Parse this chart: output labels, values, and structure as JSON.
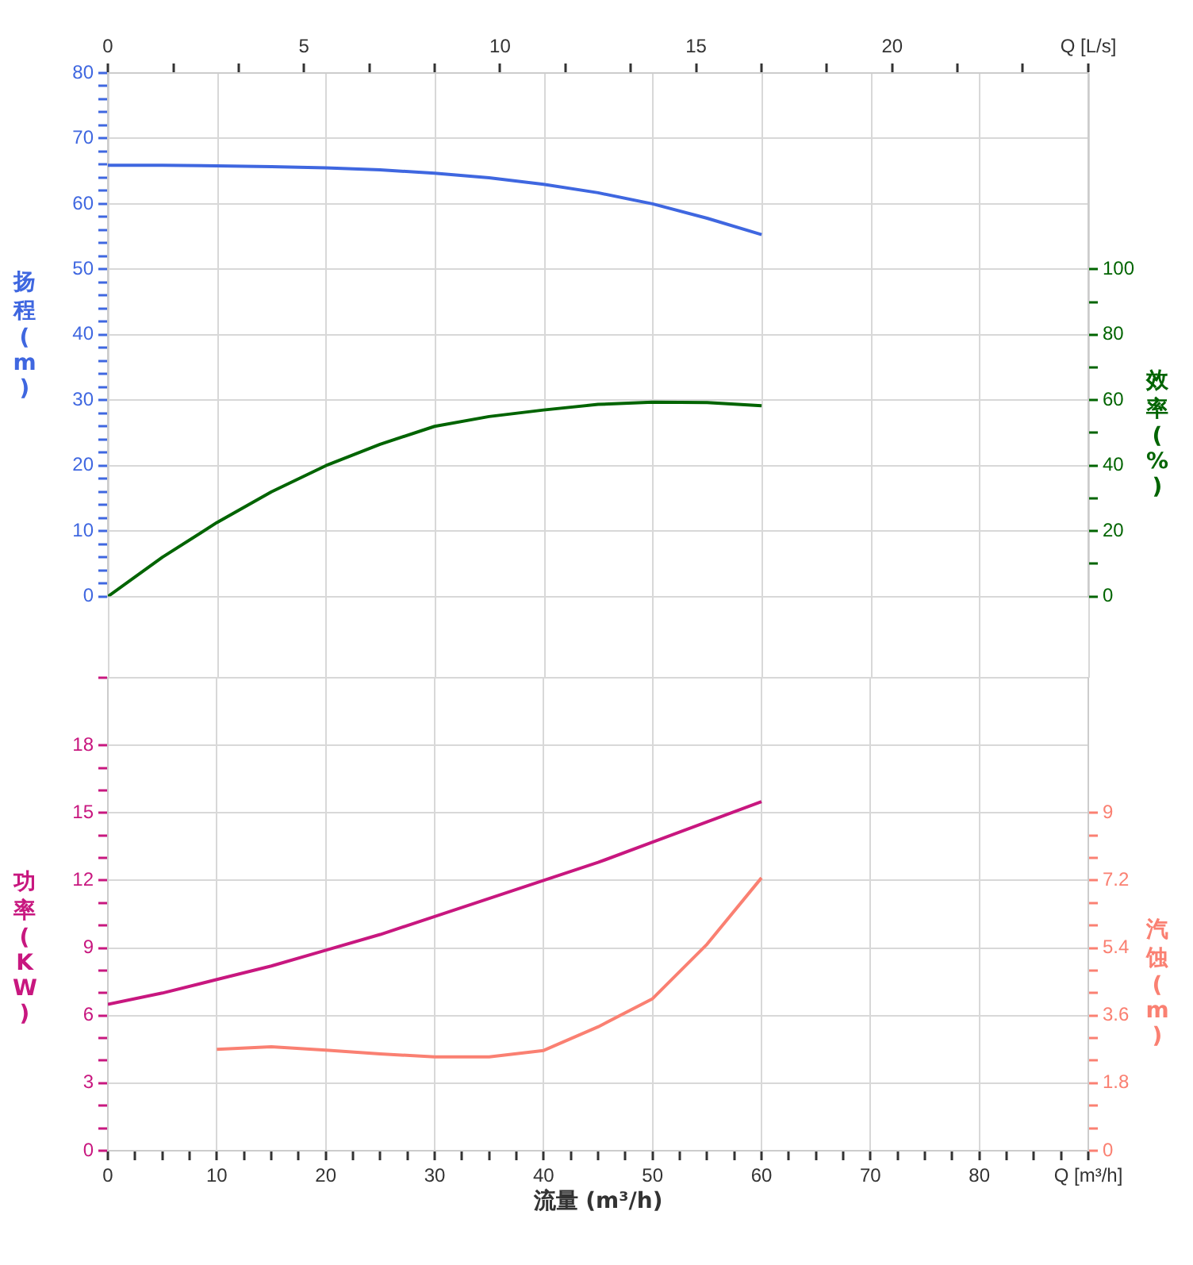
{
  "chart_data": [
    {
      "type": "line",
      "ylabel": "扬程(m)",
      "y2label": "效率(%)",
      "grid": "y",
      "x": [
        0,
        1.39,
        2.78,
        4.17,
        5.56,
        6.94,
        8.33,
        9.72,
        11.11,
        12.5,
        13.89,
        15.28,
        16.67
      ],
      "xlim": [
        0,
        25
      ],
      "xticks": [
        0,
        {
          "value": 1.67,
          "label": null
        },
        {
          "value": 3.33,
          "label": null
        },
        5,
        {
          "value": 6.67,
          "label": null
        },
        {
          "value": 8.33,
          "label": null
        },
        10,
        {
          "value": 11.67,
          "label": null
        },
        {
          "value": 13.33,
          "label": null
        },
        15,
        {
          "value": 16.67,
          "label": null
        },
        {
          "value": 18.33,
          "label": null
        },
        20,
        {
          "value": 21.67,
          "label": null
        },
        {
          "value": 23.33,
          "label": null
        },
        {
          "value": 25,
          "label": "Q [L/s]"
        }
      ],
      "ylim": [
        0,
        80
      ],
      "yticks": [
        0,
        {
          "value": 2,
          "label": null
        },
        {
          "value": 4,
          "label": null
        },
        {
          "value": 6,
          "label": null
        },
        {
          "value": 8,
          "label": null
        },
        10,
        {
          "value": 12,
          "label": null
        },
        {
          "value": 14,
          "label": null
        },
        {
          "value": 16,
          "label": null
        },
        {
          "value": 18,
          "label": null
        },
        20,
        {
          "value": 22,
          "label": null
        },
        {
          "value": 24,
          "label": null
        },
        {
          "value": 26,
          "label": null
        },
        {
          "value": 28,
          "label": null
        },
        30,
        {
          "value": 32,
          "label": null
        },
        {
          "value": 34,
          "label": null
        },
        {
          "value": 36,
          "label": null
        },
        {
          "value": 38,
          "label": null
        },
        40,
        {
          "value": 42,
          "label": null
        },
        {
          "value": 44,
          "label": null
        },
        {
          "value": 46,
          "label": null
        },
        {
          "value": 48,
          "label": null
        },
        50,
        {
          "value": 52,
          "label": null
        },
        {
          "value": 54,
          "label": null
        },
        {
          "value": 56,
          "label": null
        },
        {
          "value": 58,
          "label": null
        },
        60,
        {
          "value": 62,
          "label": null
        },
        {
          "value": 64,
          "label": null
        },
        {
          "value": 66,
          "label": null
        },
        {
          "value": 68,
          "label": null
        },
        70,
        {
          "value": 72,
          "label": null
        },
        {
          "value": 74,
          "label": null
        },
        {
          "value": 76,
          "label": null
        },
        {
          "value": 78,
          "label": null
        },
        80
      ],
      "y2lim": [
        0,
        160
      ],
      "y2ticks": [
        0,
        {
          "value": 10,
          "label": null
        },
        20,
        {
          "value": 30,
          "label": null
        },
        40,
        {
          "value": 50,
          "label": null
        },
        60,
        {
          "value": 70,
          "label": null
        },
        80,
        {
          "value": 90,
          "label": null
        },
        100
      ],
      "series": [
        {
          "color": "#3f67e0",
          "values": [
            65.9,
            65.9,
            65.8,
            65.7,
            65.5,
            65.2,
            64.7,
            64.0,
            63.0,
            61.7,
            60.0,
            57.8,
            55.3
          ]
        },
        {
          "color": "#006400",
          "axis": "y2",
          "values": [
            0,
            12,
            22.6,
            32,
            40,
            46.5,
            52,
            55,
            57,
            58.7,
            59.4,
            59.3,
            58.3
          ]
        }
      ]
    },
    {
      "type": "line",
      "ylabel": "功率(KW)",
      "y2label": "汽蚀(m)",
      "xlabel": "流量 (m³/h)",
      "grid": true,
      "x": [
        0,
        5,
        10,
        15,
        20,
        25,
        30,
        35,
        40,
        45,
        50,
        55,
        60
      ],
      "xlim": [
        0,
        90
      ],
      "xticks": [
        0,
        {
          "value": 2.5,
          "label": null
        },
        {
          "value": 5,
          "label": null
        },
        {
          "value": 7.5,
          "label": null
        },
        10,
        {
          "value": 12.5,
          "label": null
        },
        {
          "value": 15,
          "label": null
        },
        {
          "value": 17.5,
          "label": null
        },
        20,
        {
          "value": 22.5,
          "label": null
        },
        {
          "value": 25,
          "label": null
        },
        {
          "value": 27.5,
          "label": null
        },
        30,
        {
          "value": 32.5,
          "label": null
        },
        {
          "value": 35,
          "label": null
        },
        {
          "value": 37.5,
          "label": null
        },
        40,
        {
          "value": 42.5,
          "label": null
        },
        {
          "value": 45,
          "label": null
        },
        {
          "value": 47.5,
          "label": null
        },
        50,
        {
          "value": 52.5,
          "label": null
        },
        {
          "value": 55,
          "label": null
        },
        {
          "value": 57.5,
          "label": null
        },
        60,
        {
          "value": 62.5,
          "label": null
        },
        {
          "value": 65,
          "label": null
        },
        {
          "value": 67.5,
          "label": null
        },
        70,
        {
          "value": 72.5,
          "label": null
        },
        {
          "value": 75,
          "label": null
        },
        {
          "value": 77.5,
          "label": null
        },
        80,
        {
          "value": 82.5,
          "label": null
        },
        {
          "value": 85,
          "label": null
        },
        {
          "value": 87.5,
          "label": null
        },
        {
          "value": 90,
          "label": "Q [m³/h]"
        }
      ],
      "ylim": [
        0,
        21
      ],
      "yticks": [
        0,
        {
          "value": 1,
          "label": null
        },
        {
          "value": 2,
          "label": null
        },
        3,
        {
          "value": 4,
          "label": null
        },
        {
          "value": 5,
          "label": null
        },
        6,
        {
          "value": 7,
          "label": null
        },
        {
          "value": 8,
          "label": null
        },
        9,
        {
          "value": 10,
          "label": null
        },
        {
          "value": 11,
          "label": null
        },
        12,
        {
          "value": 13,
          "label": null
        },
        {
          "value": 14,
          "label": null
        },
        15,
        {
          "value": 16,
          "label": null
        },
        {
          "value": 17,
          "label": null
        },
        18,
        {
          "value": 21,
          "label": null
        }
      ],
      "y2lim": [
        0,
        12.6
      ],
      "y2ticks": [
        0,
        {
          "value": 0.6,
          "label": null
        },
        {
          "value": 1.2,
          "label": null
        },
        1.8,
        {
          "value": 2.4,
          "label": null
        },
        {
          "value": 3,
          "label": null
        },
        3.6,
        {
          "value": 4.2,
          "label": null
        },
        {
          "value": 4.8,
          "label": null
        },
        5.4,
        {
          "value": 6,
          "label": null
        },
        {
          "value": 6.6,
          "label": null
        },
        7.2,
        {
          "value": 7.8,
          "label": null
        },
        {
          "value": 8.4,
          "label": null
        },
        9
      ],
      "series": [
        {
          "color": "#c8177f",
          "values": [
            6.5,
            7.0,
            7.6,
            8.2,
            8.9,
            9.6,
            10.4,
            11.2,
            12.0,
            12.8,
            13.7,
            14.6,
            15.5
          ]
        },
        {
          "color": "#fa8072",
          "axis": "y2",
          "x": [
            10,
            15,
            20,
            25,
            30,
            35,
            40,
            45,
            50,
            55,
            60
          ],
          "values": [
            2.7,
            2.77,
            2.68,
            2.58,
            2.5,
            2.5,
            2.67,
            3.3,
            4.05,
            5.5,
            7.27
          ]
        }
      ]
    }
  ]
}
